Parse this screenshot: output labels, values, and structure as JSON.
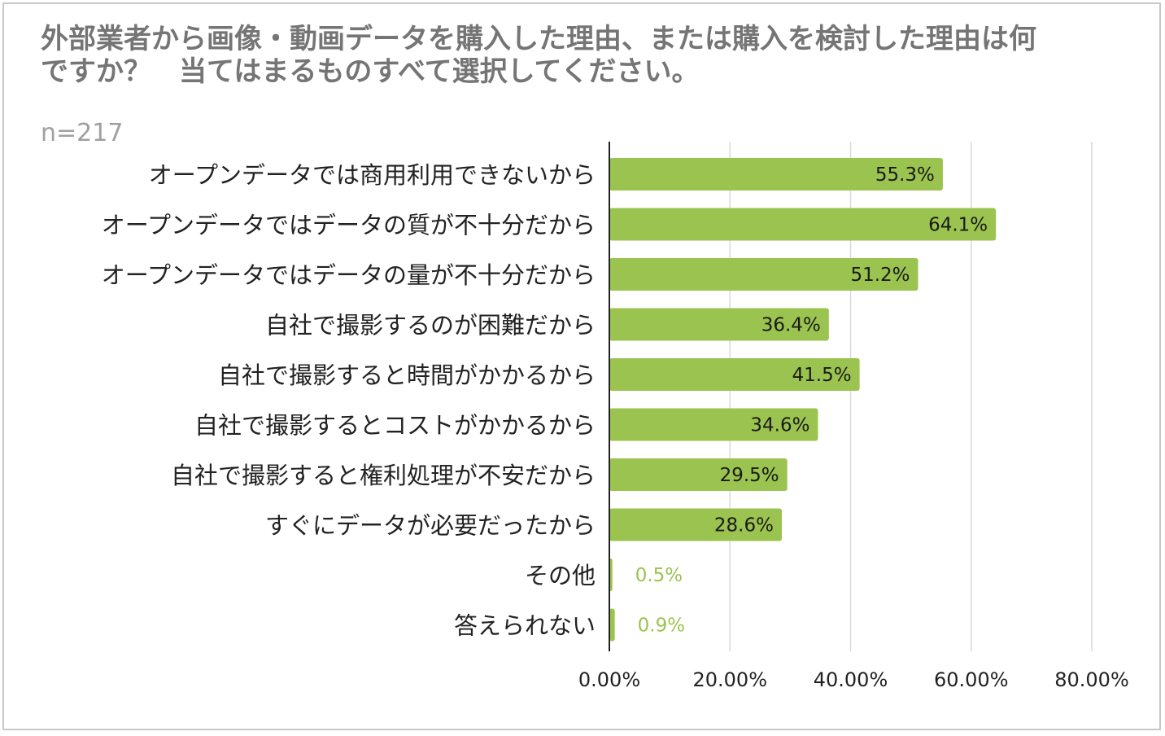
{
  "title_lines": [
    "外部業者から画像・動画データを購入した理由、または購入を検討した理由は何",
    "ですか？　当てはまるものすべて選択してください。"
  ],
  "sample_note": "n=217",
  "colors": {
    "bar": "#9bc34f",
    "grid": "#d9d9d9",
    "axis": "#222222",
    "label": "#222222",
    "title": "#757575"
  },
  "chart_data": {
    "type": "bar",
    "orientation": "horizontal",
    "categories": [
      "オープンデータでは商用利用できないから",
      "オープンデータではデータの質が不十分だから",
      "オープンデータではデータの量が不十分だから",
      "自社で撮影するのが困難だから",
      "自社で撮影すると時間がかかるから",
      "自社で撮影するとコストがかかるから",
      "自社で撮影すると権利処理が不安だから",
      "すぐにデータが必要だったから",
      "その他",
      "答えられない"
    ],
    "values": [
      55.3,
      64.1,
      51.2,
      36.4,
      41.5,
      34.6,
      29.5,
      28.6,
      0.5,
      0.9
    ],
    "data_labels": [
      "55.3%",
      "64.1%",
      "51.2%",
      "36.4%",
      "41.5%",
      "34.6%",
      "29.5%",
      "28.6%",
      "0.5%",
      "0.9%"
    ],
    "xlim": [
      0,
      80
    ],
    "xticks": [
      0,
      20,
      40,
      60,
      80
    ],
    "xtick_labels": [
      "0.00%",
      "20.00%",
      "40.00%",
      "60.00%",
      "80.00%"
    ],
    "grid": true,
    "legend": "none"
  }
}
